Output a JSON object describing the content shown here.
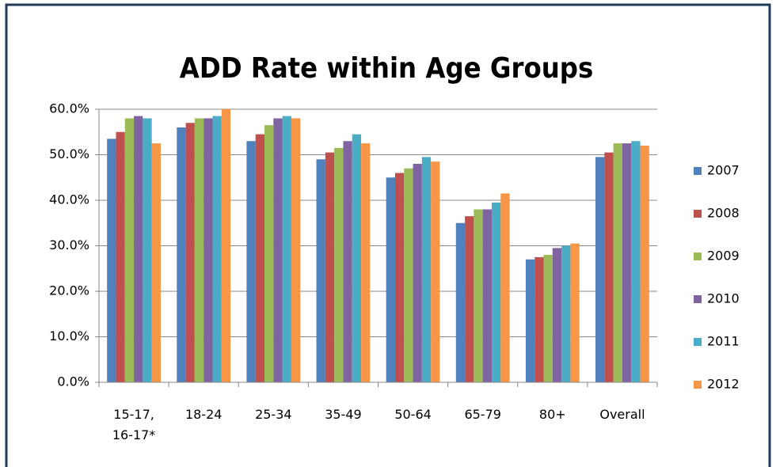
{
  "chart_data": {
    "type": "bar",
    "title": "ADD Rate within Age Groups",
    "categories": [
      "15-17, 16-17*",
      "18-24",
      "25-34",
      "35-49",
      "50-64",
      "65-79",
      "80+",
      "Overall"
    ],
    "series": [
      {
        "name": "2007",
        "color": "#4f81bd",
        "values": [
          53.5,
          56,
          53,
          49,
          45,
          35,
          27,
          49.5
        ]
      },
      {
        "name": "2008",
        "color": "#c0504d",
        "values": [
          55,
          57,
          54.5,
          50.5,
          46,
          36.5,
          27.5,
          50.5
        ]
      },
      {
        "name": "2009",
        "color": "#9bbb59",
        "values": [
          58,
          58,
          56.5,
          51.5,
          47,
          38,
          28,
          52.5
        ]
      },
      {
        "name": "2010",
        "color": "#8064a2",
        "values": [
          58.5,
          58,
          58,
          53,
          48,
          38,
          29.5,
          52.5
        ]
      },
      {
        "name": "2011",
        "color": "#4bacc6",
        "values": [
          58,
          58.5,
          58.5,
          54.5,
          49.5,
          39.5,
          30,
          53
        ]
      },
      {
        "name": "2012",
        "color": "#f79646",
        "values": [
          52.5,
          60,
          58,
          52.5,
          48.5,
          41.5,
          30.5,
          52
        ]
      }
    ],
    "ylim": [
      0,
      60
    ],
    "yticks": [
      {
        "value": 0,
        "label": "0.0%"
      },
      {
        "value": 10,
        "label": "10.0%"
      },
      {
        "value": 20,
        "label": "20.0%"
      },
      {
        "value": 30,
        "label": "30.0%"
      },
      {
        "value": 40,
        "label": "40.0%"
      },
      {
        "value": 50,
        "label": "50.0%"
      },
      {
        "value": 60,
        "label": "60.0%"
      }
    ],
    "grid": true,
    "legend": "right"
  }
}
